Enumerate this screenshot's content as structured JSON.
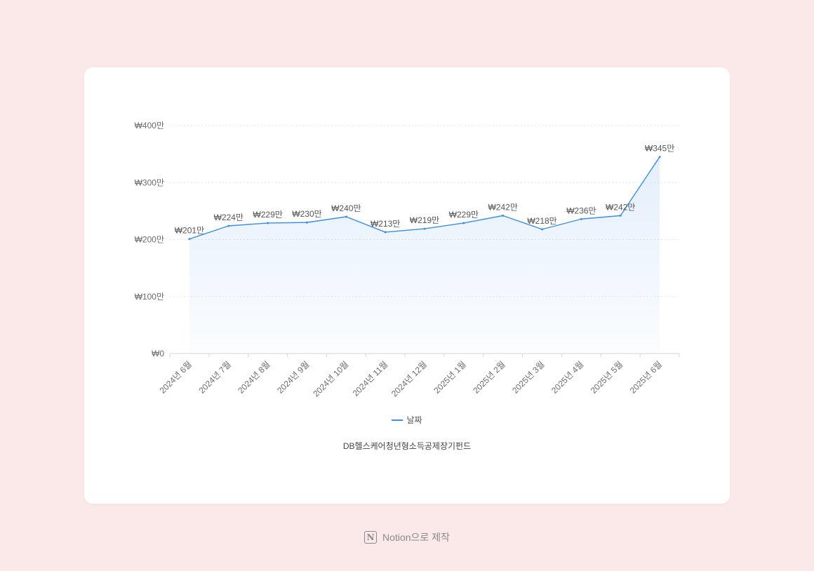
{
  "chart_data": {
    "type": "area",
    "categories": [
      "2024년 6월",
      "2024년 7월",
      "2024년 8월",
      "2024년 9월",
      "2024년 10월",
      "2024년 11월",
      "2024년 12월",
      "2025년 1월",
      "2025년 2월",
      "2025년 3월",
      "2025년 4월",
      "2025년 5월",
      "2025년 6월"
    ],
    "series": [
      {
        "name": "날짜",
        "values": [
          201,
          224,
          229,
          230,
          240,
          213,
          219,
          229,
          242,
          218,
          236,
          242,
          345
        ],
        "data_labels": [
          "₩201만",
          "₩224만",
          "₩229만",
          "₩230만",
          "₩240만",
          "₩213만",
          "₩219만",
          "₩229만",
          "₩242만",
          "₩218만",
          "₩236만",
          "₩242만",
          "₩345만"
        ],
        "color": "#3a8ee6"
      }
    ],
    "yticks": [
      0,
      100,
      200,
      300,
      400
    ],
    "ytick_labels": [
      "₩0",
      "₩100만",
      "₩200만",
      "₩300만",
      "₩400만"
    ],
    "ylim": [
      0,
      400
    ],
    "y_unit": "만원",
    "grid": true,
    "legend_placement": "bottom"
  },
  "legend": {
    "label": "날짜"
  },
  "caption": "DB헬스케어청년형소득공제장기펀드",
  "footer": {
    "text": "Notion으로 제작",
    "logo_letter": "N"
  },
  "colors": {
    "background": "#fbe8e9",
    "card": "#ffffff",
    "line": "#3a8ee6"
  }
}
